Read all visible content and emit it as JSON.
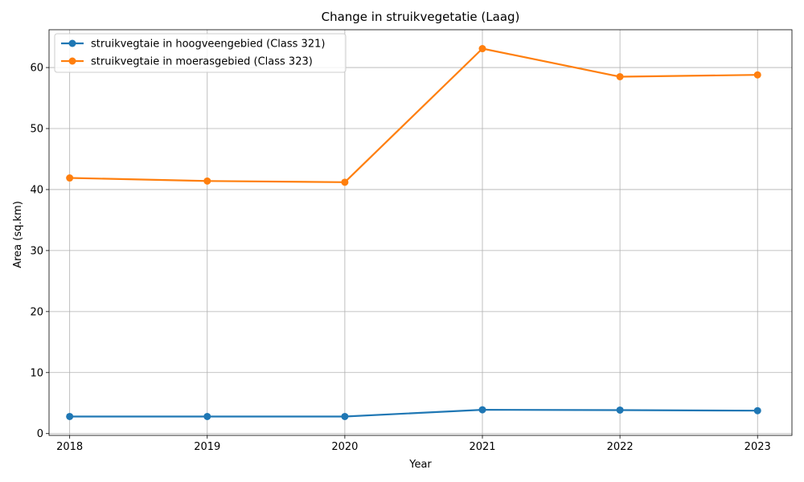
{
  "chart_data": {
    "type": "line",
    "title": "Change in struikvegetatie (Laag)",
    "xlabel": "Year",
    "ylabel": "Area (sq.km)",
    "x": [
      2018,
      2019,
      2020,
      2021,
      2022,
      2023
    ],
    "x_ticks": [
      "2018",
      "2019",
      "2020",
      "2021",
      "2022",
      "2023"
    ],
    "y_ticks": [
      0,
      10,
      20,
      30,
      40,
      50,
      60
    ],
    "ylim": [
      -0.3,
      66.2
    ],
    "xlim": [
      2017.85,
      2023.25
    ],
    "grid": true,
    "legend_position": "upper left",
    "series": [
      {
        "name": "struikvegtaie in hoogveengebied (Class 321)",
        "color": "#1f77b4",
        "values": [
          2.8,
          2.8,
          2.8,
          3.9,
          3.85,
          3.75
        ]
      },
      {
        "name": "struikvegtaie in moerasgebied (Class 323)",
        "color": "#ff7f0e",
        "values": [
          41.9,
          41.4,
          41.2,
          63.1,
          58.5,
          58.8
        ]
      }
    ]
  }
}
